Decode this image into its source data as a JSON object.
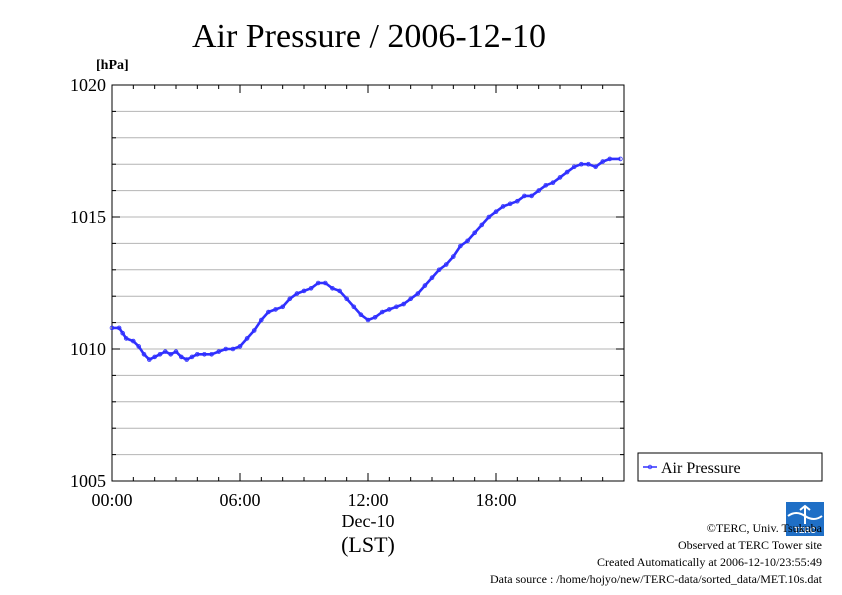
{
  "chart_data": {
    "type": "line",
    "title": "Air Pressure / 2006-12-10",
    "ylabel": "[hPa]",
    "xlabel": "(LST)",
    "x_date_label": "Dec-10",
    "x_range": [
      "00:00",
      "24:00"
    ],
    "ylim": [
      1005,
      1020
    ],
    "y_ticks": [
      "1005",
      "1010",
      "1015",
      "1020"
    ],
    "x_ticks": [
      "00:00",
      "06:00",
      "12:00",
      "18:00"
    ],
    "grid": true,
    "legend": "right",
    "series": [
      {
        "name": "Air Pressure",
        "color": "#3030ff",
        "points": [
          [
            "00:00",
            1010.8
          ],
          [
            "00:20",
            1010.8
          ],
          [
            "00:30",
            1010.6
          ],
          [
            "00:40",
            1010.4
          ],
          [
            "01:00",
            1010.3
          ],
          [
            "01:15",
            1010.1
          ],
          [
            "01:30",
            1009.8
          ],
          [
            "01:45",
            1009.6
          ],
          [
            "02:00",
            1009.7
          ],
          [
            "02:15",
            1009.8
          ],
          [
            "02:30",
            1009.9
          ],
          [
            "02:45",
            1009.8
          ],
          [
            "03:00",
            1009.9
          ],
          [
            "03:15",
            1009.7
          ],
          [
            "03:30",
            1009.6
          ],
          [
            "03:45",
            1009.7
          ],
          [
            "04:00",
            1009.8
          ],
          [
            "04:20",
            1009.8
          ],
          [
            "04:40",
            1009.8
          ],
          [
            "05:00",
            1009.9
          ],
          [
            "05:20",
            1010.0
          ],
          [
            "05:40",
            1010.0
          ],
          [
            "06:00",
            1010.1
          ],
          [
            "06:20",
            1010.4
          ],
          [
            "06:40",
            1010.7
          ],
          [
            "07:00",
            1011.1
          ],
          [
            "07:20",
            1011.4
          ],
          [
            "07:40",
            1011.5
          ],
          [
            "08:00",
            1011.6
          ],
          [
            "08:20",
            1011.9
          ],
          [
            "08:40",
            1012.1
          ],
          [
            "09:00",
            1012.2
          ],
          [
            "09:20",
            1012.3
          ],
          [
            "09:40",
            1012.5
          ],
          [
            "10:00",
            1012.5
          ],
          [
            "10:20",
            1012.3
          ],
          [
            "10:40",
            1012.2
          ],
          [
            "11:00",
            1011.9
          ],
          [
            "11:20",
            1011.6
          ],
          [
            "11:40",
            1011.3
          ],
          [
            "12:00",
            1011.1
          ],
          [
            "12:20",
            1011.2
          ],
          [
            "12:40",
            1011.4
          ],
          [
            "13:00",
            1011.5
          ],
          [
            "13:20",
            1011.6
          ],
          [
            "13:40",
            1011.7
          ],
          [
            "14:00",
            1011.9
          ],
          [
            "14:20",
            1012.1
          ],
          [
            "14:40",
            1012.4
          ],
          [
            "15:00",
            1012.7
          ],
          [
            "15:20",
            1013.0
          ],
          [
            "15:40",
            1013.2
          ],
          [
            "16:00",
            1013.5
          ],
          [
            "16:20",
            1013.9
          ],
          [
            "16:40",
            1014.1
          ],
          [
            "17:00",
            1014.4
          ],
          [
            "17:20",
            1014.7
          ],
          [
            "17:40",
            1015.0
          ],
          [
            "18:00",
            1015.2
          ],
          [
            "18:20",
            1015.4
          ],
          [
            "18:40",
            1015.5
          ],
          [
            "19:00",
            1015.6
          ],
          [
            "19:20",
            1015.8
          ],
          [
            "19:40",
            1015.8
          ],
          [
            "20:00",
            1016.0
          ],
          [
            "20:20",
            1016.2
          ],
          [
            "20:40",
            1016.3
          ],
          [
            "21:00",
            1016.5
          ],
          [
            "21:20",
            1016.7
          ],
          [
            "21:40",
            1016.9
          ],
          [
            "22:00",
            1017.0
          ],
          [
            "22:20",
            1017.0
          ],
          [
            "22:40",
            1016.9
          ],
          [
            "23:00",
            1017.1
          ],
          [
            "23:20",
            1017.2
          ],
          [
            "23:50",
            1017.2
          ]
        ]
      }
    ]
  },
  "footer": {
    "copyright": "©TERC, Univ. Tsukuba",
    "observed": "Observed at TERC Tower site",
    "created": "Created Automatically at 2006-12-10/23:55:49",
    "source": "Data source : /home/hojyo/new/TERC-data/sorted_data/MET.10s.dat"
  },
  "logo": {
    "text": "TERC",
    "color": "#1f6fc6"
  }
}
